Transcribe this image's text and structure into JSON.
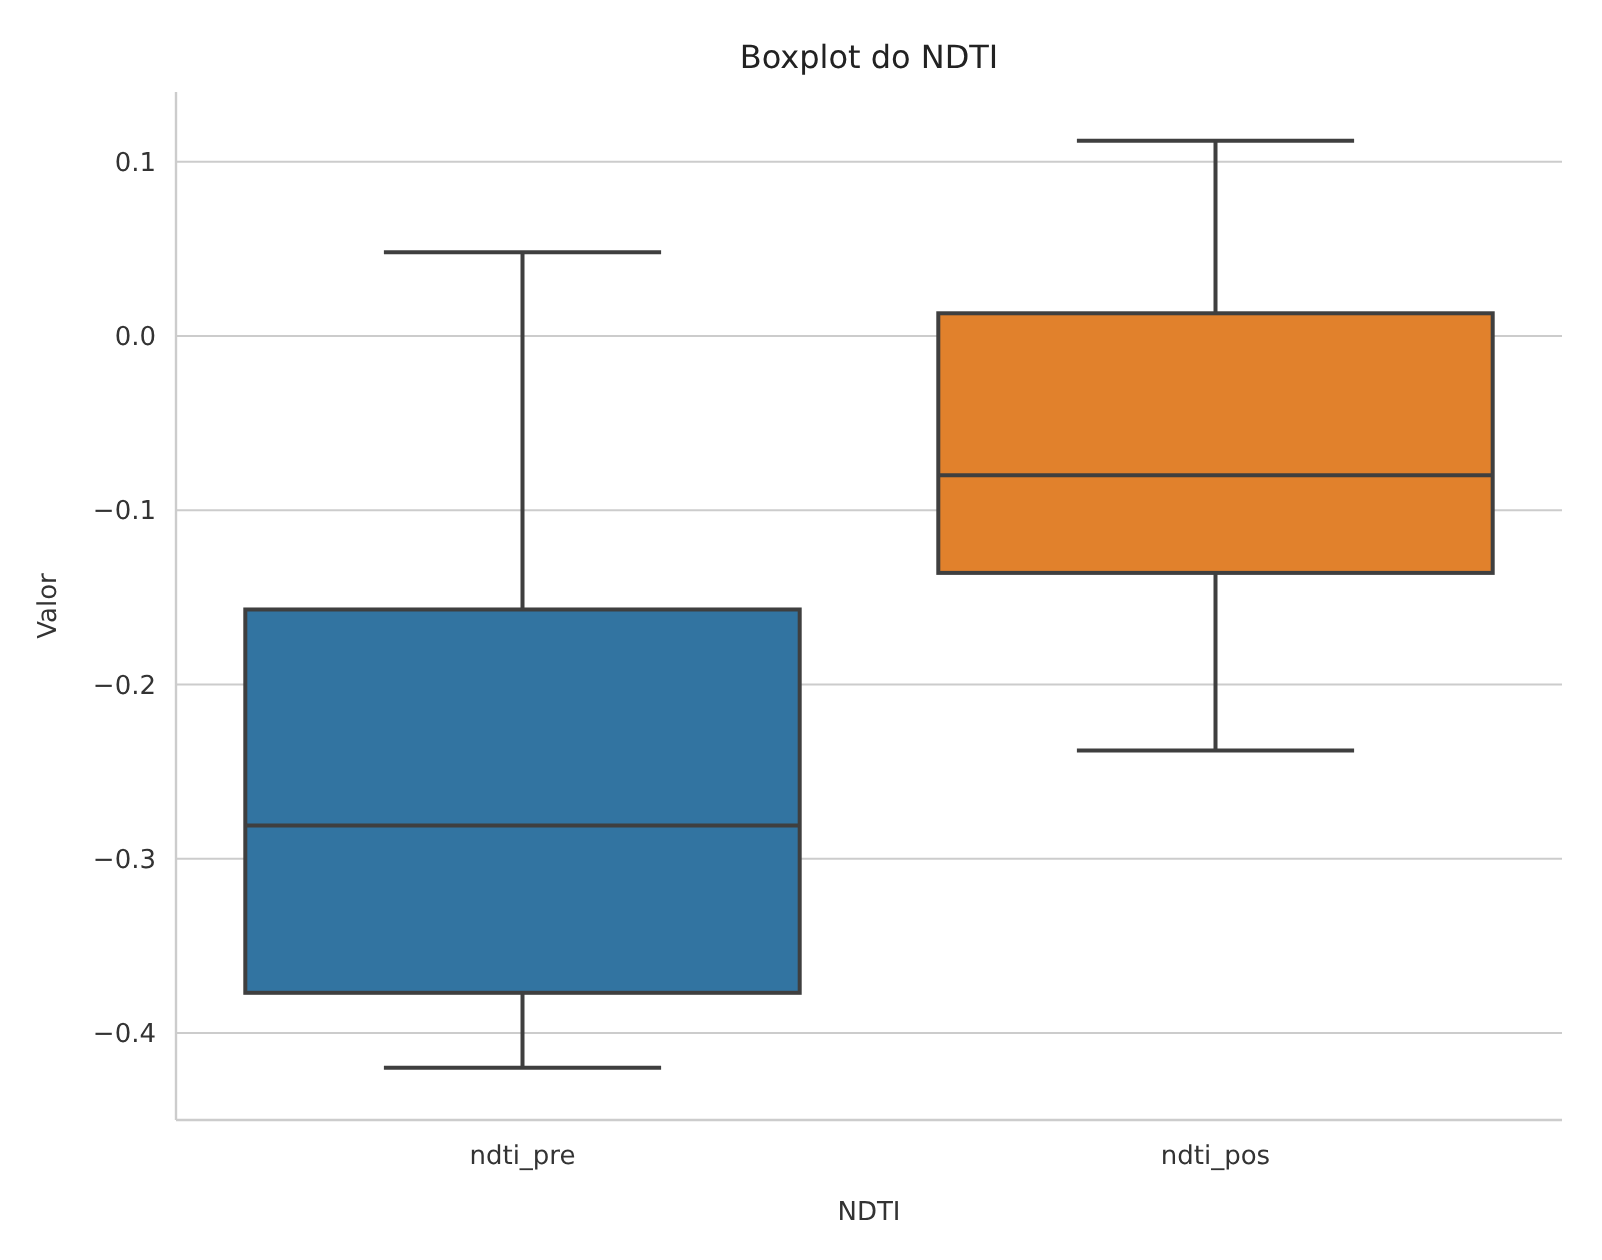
{
  "chart_data": {
    "type": "box",
    "title": "Boxplot do NDTI",
    "xlabel": "NDTI",
    "ylabel": "Valor",
    "categories": [
      "ndti_pre",
      "ndti_pos"
    ],
    "colors": [
      "#3274a1",
      "#e1812c"
    ],
    "boxes": [
      {
        "low": -0.42,
        "q1": -0.377,
        "median": -0.281,
        "q3": -0.157,
        "high": 0.048
      },
      {
        "low": -0.238,
        "q1": -0.136,
        "median": -0.08,
        "q3": 0.013,
        "high": 0.112
      }
    ],
    "ylim": [
      -0.45,
      0.14
    ],
    "yticks": [
      {
        "value": -0.4,
        "label": "−0.4"
      },
      {
        "value": -0.3,
        "label": "−0.3"
      },
      {
        "value": -0.2,
        "label": "−0.2"
      },
      {
        "value": -0.1,
        "label": "−0.1"
      },
      {
        "value": 0,
        "label": "0.0"
      },
      {
        "value": 0.1,
        "label": "0.1"
      }
    ],
    "grid": "y"
  }
}
